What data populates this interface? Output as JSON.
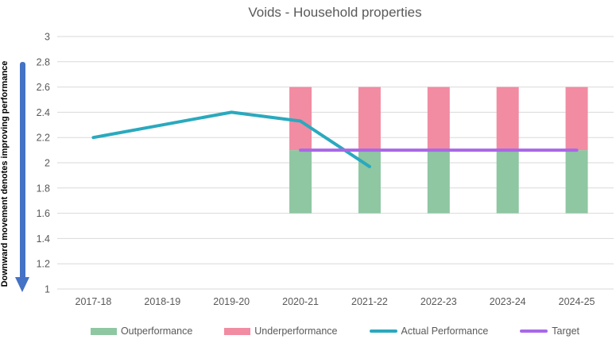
{
  "title": "Voids - Household properties",
  "left_annotation": {
    "text": "Downward movement denotes improving performance",
    "arrow_color": "#4472C4"
  },
  "colors": {
    "title_text": "#595959",
    "axis_text": "#595959",
    "legend_text": "#595959",
    "gridline": "#D9D9D9",
    "annotation_text": "#000000"
  },
  "chart_data": {
    "type": "combo-bar-line",
    "title": "Voids - Household properties",
    "categories": [
      "2017-18",
      "2018-19",
      "2019-20",
      "2020-21",
      "2021-22",
      "2022-23",
      "2023-24",
      "2024-25"
    ],
    "ylim": [
      1,
      3
    ],
    "y_ticks": [
      3,
      2.8,
      2.6,
      2.4,
      2.2,
      2,
      1.8,
      1.6,
      1.4,
      1.2,
      1
    ],
    "grid": true,
    "legend_position": "bottom",
    "series": [
      {
        "name": "Outperformance",
        "type": "bar",
        "color": "#8EC7A2",
        "segments": [
          null,
          null,
          null,
          [
            1.6,
            2.1
          ],
          [
            1.6,
            2.1
          ],
          [
            1.6,
            2.1
          ],
          [
            1.6,
            2.1
          ],
          [
            1.6,
            2.1
          ]
        ]
      },
      {
        "name": "Underperformance",
        "type": "bar",
        "color": "#F18CA2",
        "segments": [
          null,
          null,
          null,
          [
            2.1,
            2.6
          ],
          [
            2.1,
            2.6
          ],
          [
            2.1,
            2.6
          ],
          [
            2.1,
            2.6
          ],
          [
            2.1,
            2.6
          ]
        ]
      },
      {
        "name": "Actual Performance",
        "type": "line",
        "color": "#2AA9BE",
        "values": [
          2.2,
          2.3,
          2.4,
          2.33,
          1.97,
          null,
          null,
          null
        ]
      },
      {
        "name": "Target",
        "type": "line",
        "color": "#A868E6",
        "values": [
          null,
          null,
          null,
          2.1,
          2.1,
          2.1,
          2.1,
          2.1
        ]
      }
    ]
  }
}
